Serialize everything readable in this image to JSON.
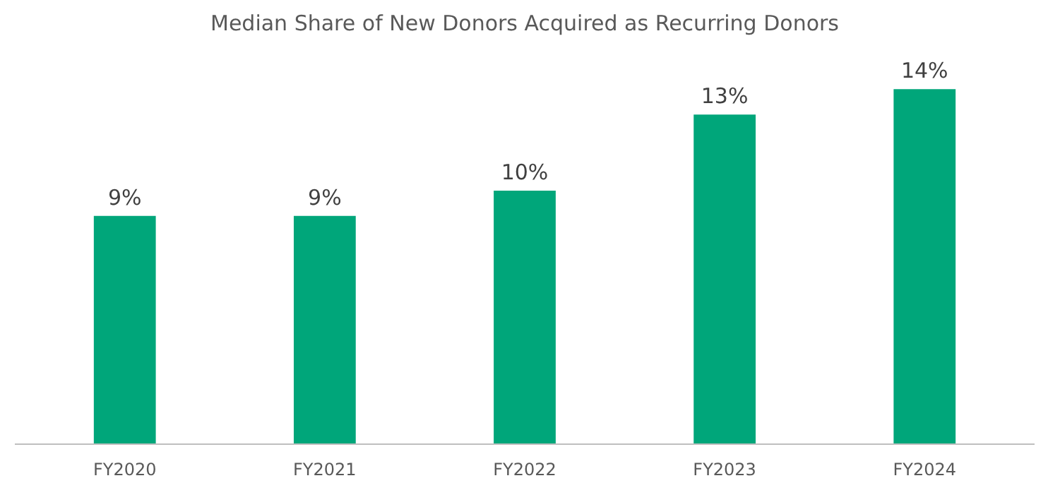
{
  "chart_data": {
    "type": "bar",
    "title": "Median Share of New Donors Acquired as Recurring Donors",
    "categories": [
      "FY2020",
      "FY2021",
      "FY2022",
      "FY2023",
      "FY2024"
    ],
    "values": [
      9,
      9,
      10,
      13,
      14
    ],
    "value_labels": [
      "9%",
      "9%",
      "10%",
      "13%",
      "14%"
    ],
    "color": "#00a67a",
    "grid": false
  }
}
